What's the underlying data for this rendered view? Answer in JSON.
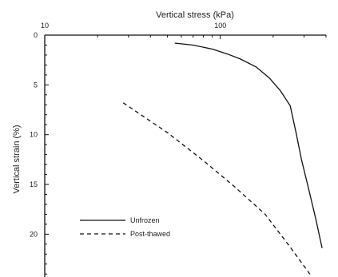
{
  "chart_data": {
    "type": "line",
    "title": "",
    "xlabel": "Vertical stress (kPa)",
    "ylabel": "Vertical strain (%)",
    "x_scale": "log",
    "x_axis_position": "top",
    "y_inverted": true,
    "xlim": [
      10,
      400
    ],
    "ylim": [
      0,
      24.3
    ],
    "x_ticks": [
      {
        "value": 10,
        "label": "10"
      },
      {
        "value": 100,
        "label": "100"
      }
    ],
    "y_ticks": [
      {
        "value": 0,
        "label": "0"
      },
      {
        "value": 5,
        "label": "5"
      },
      {
        "value": 10,
        "label": "10"
      },
      {
        "value": 15,
        "label": "15"
      },
      {
        "value": 20,
        "label": "20"
      }
    ],
    "series": [
      {
        "name": "Unfrozen",
        "style": "solid",
        "color": "#111111",
        "x": [
          55,
          70,
          90,
          110,
          130,
          160,
          190,
          220,
          250,
          270,
          290,
          320,
          350,
          380
        ],
        "y": [
          0.8,
          1.0,
          1.4,
          1.9,
          2.4,
          3.2,
          4.3,
          5.6,
          7.1,
          9.8,
          12.5,
          15.6,
          18.5,
          21.4
        ]
      },
      {
        "name": "Post-thawed",
        "style": "dashed",
        "color": "#111111",
        "x": [
          28,
          50,
          80,
          120,
          180,
          250,
          330
        ],
        "y": [
          6.8,
          9.8,
          12.6,
          15.2,
          18.0,
          21.3,
          24.2
        ]
      }
    ],
    "legend_position": "bottom-left",
    "grid": false
  }
}
